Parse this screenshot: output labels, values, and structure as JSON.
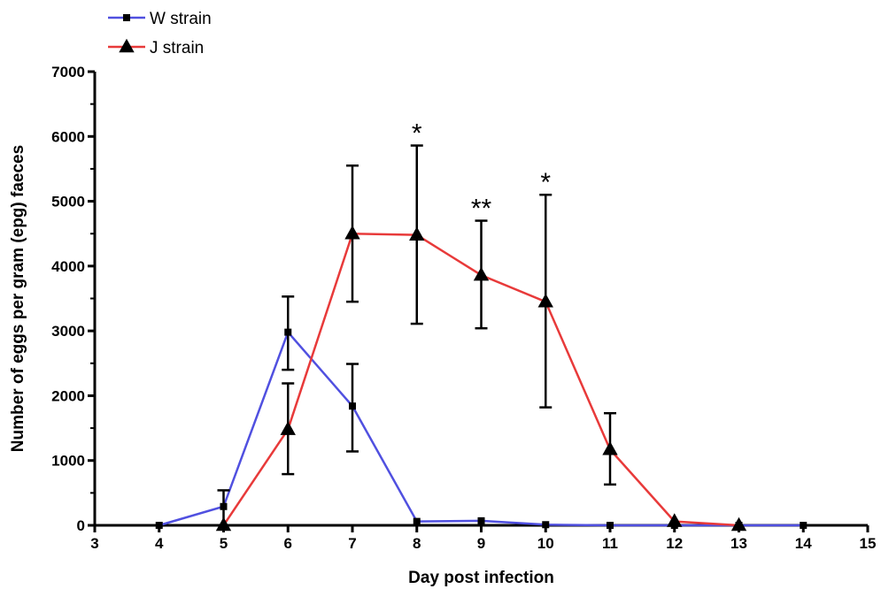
{
  "chart_data": {
    "type": "line",
    "xlabel": "Day post infection",
    "ylabel": "Number of eggs per gram (epg) faeces",
    "xlim": [
      3,
      15
    ],
    "ylim": [
      0,
      7000
    ],
    "xticks": [
      "3",
      "4",
      "5",
      "6",
      "7",
      "8",
      "9",
      "10",
      "11",
      "12",
      "13",
      "14",
      "15"
    ],
    "yticks": [
      "0",
      "1000",
      "2000",
      "3000",
      "4000",
      "5000",
      "6000",
      "7000"
    ],
    "grid": false,
    "legend_position": "top-left",
    "series": [
      {
        "name": "W strain",
        "color": "#5050e0",
        "marker": "square",
        "points": [
          {
            "x": 4,
            "y": 0
          },
          {
            "x": 5,
            "y": 290,
            "err_low": 0,
            "err_high": 540
          },
          {
            "x": 6,
            "y": 2980,
            "err_low": 2400,
            "err_high": 3530
          },
          {
            "x": 7,
            "y": 1840,
            "err_low": 1140,
            "err_high": 2490
          },
          {
            "x": 8,
            "y": 60
          },
          {
            "x": 9,
            "y": 70
          },
          {
            "x": 10,
            "y": 10
          },
          {
            "x": 11,
            "y": 0
          },
          {
            "x": 12,
            "y": 0
          },
          {
            "x": 13,
            "y": 0
          },
          {
            "x": 14,
            "y": 0
          }
        ]
      },
      {
        "name": "J strain",
        "color": "#e83a3a",
        "marker": "triangle",
        "points": [
          {
            "x": 5,
            "y": 0
          },
          {
            "x": 6,
            "y": 1480,
            "err_low": 790,
            "err_high": 2190
          },
          {
            "x": 7,
            "y": 4500,
            "err_low": 3450,
            "err_high": 5550
          },
          {
            "x": 8,
            "y": 4480,
            "err_low": 3110,
            "err_high": 5860
          },
          {
            "x": 9,
            "y": 3860,
            "err_low": 3040,
            "err_high": 4700
          },
          {
            "x": 10,
            "y": 3450,
            "err_low": 1820,
            "err_high": 5100
          },
          {
            "x": 11,
            "y": 1170,
            "err_low": 630,
            "err_high": 1730
          },
          {
            "x": 12,
            "y": 60
          },
          {
            "x": 13,
            "y": 0
          }
        ]
      }
    ],
    "annotations": [
      {
        "text": "*",
        "x": 8
      },
      {
        "text": "**",
        "x": 9
      },
      {
        "text": "*",
        "x": 10
      }
    ]
  }
}
